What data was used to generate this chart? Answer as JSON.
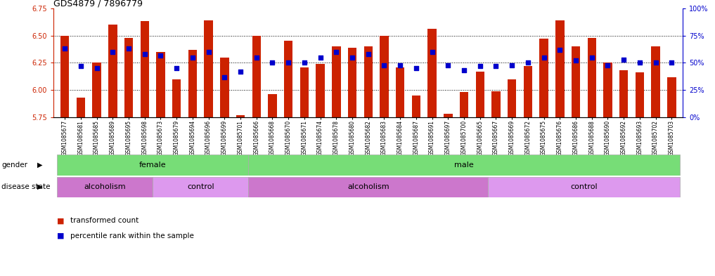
{
  "title": "GDS4879 / 7896779",
  "samples": [
    "GSM1085677",
    "GSM1085681",
    "GSM1085685",
    "GSM1085689",
    "GSM1085695",
    "GSM1085698",
    "GSM1085673",
    "GSM1085679",
    "GSM1085694",
    "GSM1085696",
    "GSM1085699",
    "GSM1085701",
    "GSM1085666",
    "GSM1085668",
    "GSM1085670",
    "GSM1085671",
    "GSM1085674",
    "GSM1085678",
    "GSM1085680",
    "GSM1085682",
    "GSM1085683",
    "GSM1085684",
    "GSM1085687",
    "GSM1085691",
    "GSM1085697",
    "GSM1085700",
    "GSM1085665",
    "GSM1085667",
    "GSM1085669",
    "GSM1085672",
    "GSM1085675",
    "GSM1085676",
    "GSM1085686",
    "GSM1085688",
    "GSM1085690",
    "GSM1085692",
    "GSM1085693",
    "GSM1085702",
    "GSM1085703"
  ],
  "bar_values": [
    6.5,
    5.93,
    6.25,
    6.6,
    6.48,
    6.63,
    6.35,
    6.1,
    6.37,
    6.64,
    6.3,
    5.77,
    6.5,
    5.96,
    6.45,
    6.21,
    6.24,
    6.4,
    6.39,
    6.4,
    6.5,
    6.21,
    5.95,
    6.56,
    5.78,
    5.98,
    6.17,
    5.99,
    6.1,
    6.22,
    6.47,
    6.64,
    6.4,
    6.48,
    6.25,
    6.18,
    6.16,
    6.4,
    6.12
  ],
  "percentile_values": [
    63,
    47,
    45,
    60,
    63,
    58,
    57,
    45,
    55,
    60,
    37,
    42,
    55,
    50,
    50,
    50,
    55,
    60,
    55,
    58,
    48,
    48,
    45,
    60,
    48,
    43,
    47,
    47,
    48,
    50,
    55,
    62,
    52,
    55,
    48,
    53,
    50,
    50,
    50
  ],
  "ylim_left": [
    5.75,
    6.75
  ],
  "ylim_right": [
    0,
    100
  ],
  "yticks_left": [
    5.75,
    6.0,
    6.25,
    6.5,
    6.75
  ],
  "yticks_right": [
    0,
    25,
    50,
    75,
    100
  ],
  "bar_color": "#cc2200",
  "marker_color": "#0000cc",
  "female_range": [
    0,
    11
  ],
  "male_range": [
    12,
    38
  ],
  "gender_color": "#77dd77",
  "disease_blocks": [
    {
      "label": "alcoholism",
      "start": 0,
      "end": 5,
      "color": "#cc77cc"
    },
    {
      "label": "control",
      "start": 6,
      "end": 11,
      "color": "#dd99ee"
    },
    {
      "label": "alcoholism",
      "start": 12,
      "end": 26,
      "color": "#cc77cc"
    },
    {
      "label": "control",
      "start": 27,
      "end": 38,
      "color": "#dd99ee"
    }
  ],
  "legend": [
    {
      "label": "transformed count",
      "color": "#cc2200"
    },
    {
      "label": "percentile rank within the sample",
      "color": "#0000cc"
    }
  ]
}
